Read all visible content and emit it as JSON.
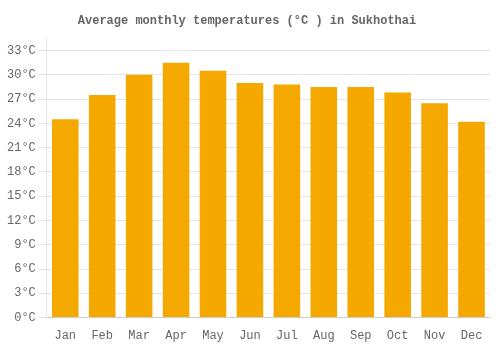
{
  "chart_data": {
    "type": "bar",
    "title": "Average monthly temperatures (°C ) in Sukhothai",
    "categories": [
      "Jan",
      "Feb",
      "Mar",
      "Apr",
      "May",
      "Jun",
      "Jul",
      "Aug",
      "Sep",
      "Oct",
      "Nov",
      "Dec"
    ],
    "values": [
      24.5,
      27.5,
      30.0,
      31.5,
      30.5,
      29.0,
      28.8,
      28.5,
      28.5,
      27.8,
      26.5,
      24.2
    ],
    "color": "#F5A800",
    "ylim": [
      0,
      34.5
    ],
    "yticks": [
      {
        "value": 0,
        "label": "0°C"
      },
      {
        "value": 3,
        "label": "3°C"
      },
      {
        "value": 6,
        "label": "6°C"
      },
      {
        "value": 9,
        "label": "9°C"
      },
      {
        "value": 12,
        "label": "12°C"
      },
      {
        "value": 15,
        "label": "15°C"
      },
      {
        "value": 18,
        "label": "18°C"
      },
      {
        "value": 21,
        "label": "21°C"
      },
      {
        "value": 24,
        "label": "24°C"
      },
      {
        "value": 27,
        "label": "27°C"
      },
      {
        "value": 30,
        "label": "30°C"
      },
      {
        "value": 33,
        "label": "33°C"
      }
    ],
    "grid": true
  }
}
